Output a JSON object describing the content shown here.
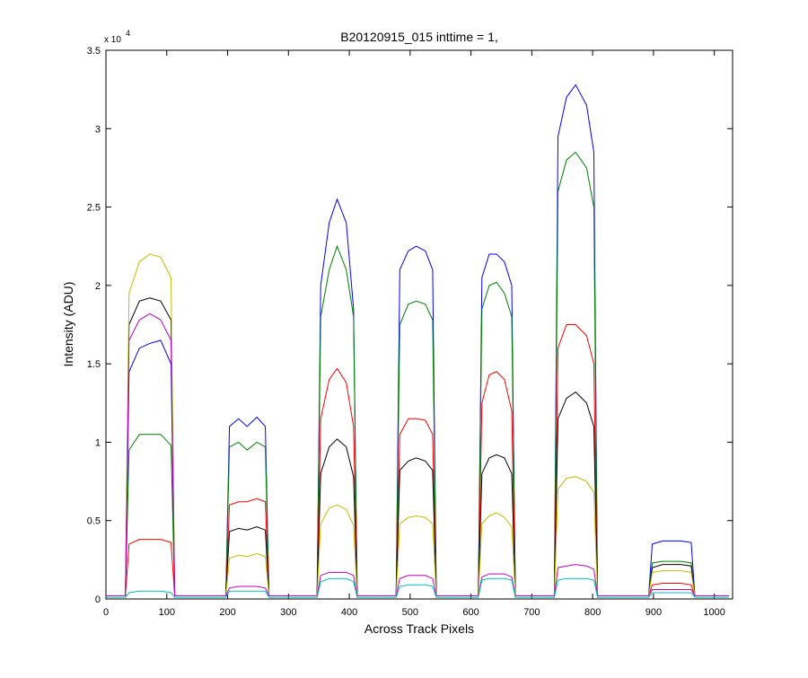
{
  "chart_data": {
    "type": "line",
    "title": "B20120915_015 inttime = 1,",
    "x_label": "Across Track Pixels",
    "y_label": "Intensity (ADU)",
    "y_multiplier": {
      "base": "x 10",
      "exponent": "4"
    },
    "x": [
      0,
      32,
      38,
      55,
      72,
      90,
      107,
      113,
      197,
      203,
      218,
      232,
      248,
      262,
      268,
      347,
      353,
      367,
      380,
      395,
      407,
      413,
      477,
      483,
      497,
      510,
      525,
      537,
      543,
      612,
      618,
      630,
      642,
      655,
      667,
      673,
      737,
      743,
      757,
      772,
      790,
      802,
      808,
      892,
      898,
      915,
      930,
      945,
      962,
      968,
      1024
    ],
    "series": [
      {
        "color": "#0000ff",
        "values": [
          0.02,
          0.02,
          1.45,
          1.6,
          1.63,
          1.65,
          1.5,
          0.02,
          0.02,
          1.1,
          1.15,
          1.1,
          1.16,
          1.1,
          0.02,
          0.02,
          2.0,
          2.4,
          2.55,
          2.4,
          1.85,
          0.02,
          0.02,
          2.1,
          2.22,
          2.25,
          2.22,
          2.1,
          0.02,
          0.02,
          2.05,
          2.2,
          2.2,
          2.15,
          2.0,
          0.02,
          0.02,
          2.95,
          3.2,
          3.28,
          3.15,
          2.85,
          0.02,
          0.02,
          0.35,
          0.37,
          0.37,
          0.37,
          0.36,
          0.02,
          0.02
        ]
      },
      {
        "color": "#008000",
        "values": [
          0.02,
          0.02,
          0.95,
          1.05,
          1.05,
          1.05,
          0.98,
          0.02,
          0.02,
          0.97,
          1.0,
          0.95,
          1.0,
          0.97,
          0.02,
          0.02,
          1.8,
          2.1,
          2.25,
          2.1,
          1.8,
          0.02,
          0.02,
          1.75,
          1.88,
          1.9,
          1.88,
          1.78,
          0.02,
          0.02,
          1.85,
          2.0,
          2.02,
          1.95,
          1.8,
          0.02,
          0.02,
          2.6,
          2.8,
          2.85,
          2.75,
          2.5,
          0.02,
          0.02,
          0.23,
          0.24,
          0.24,
          0.24,
          0.23,
          0.02,
          0.02
        ]
      },
      {
        "color": "#ff0000",
        "values": [
          0.02,
          0.02,
          0.35,
          0.38,
          0.38,
          0.38,
          0.36,
          0.02,
          0.02,
          0.6,
          0.62,
          0.62,
          0.64,
          0.62,
          0.02,
          0.02,
          1.15,
          1.4,
          1.47,
          1.38,
          1.1,
          0.02,
          0.02,
          1.05,
          1.15,
          1.15,
          1.14,
          1.05,
          0.02,
          0.02,
          1.25,
          1.43,
          1.45,
          1.4,
          1.2,
          0.02,
          0.02,
          1.6,
          1.75,
          1.75,
          1.68,
          1.5,
          0.02,
          0.02,
          0.09,
          0.1,
          0.1,
          0.1,
          0.09,
          0.02,
          0.02
        ]
      },
      {
        "color": "#000000",
        "values": [
          0.02,
          0.02,
          1.75,
          1.9,
          1.92,
          1.9,
          1.78,
          0.02,
          0.02,
          0.43,
          0.45,
          0.44,
          0.46,
          0.44,
          0.02,
          0.02,
          0.8,
          0.97,
          1.02,
          0.97,
          0.78,
          0.02,
          0.02,
          0.82,
          0.88,
          0.9,
          0.88,
          0.82,
          0.02,
          0.02,
          0.8,
          0.9,
          0.92,
          0.9,
          0.8,
          0.02,
          0.02,
          1.15,
          1.28,
          1.32,
          1.25,
          1.1,
          0.02,
          0.02,
          0.2,
          0.22,
          0.22,
          0.22,
          0.21,
          0.02,
          0.02
        ]
      },
      {
        "color": "#bfbf00",
        "values": [
          0.02,
          0.02,
          1.95,
          2.15,
          2.2,
          2.18,
          2.05,
          0.02,
          0.02,
          0.26,
          0.28,
          0.27,
          0.29,
          0.27,
          0.02,
          0.02,
          0.48,
          0.58,
          0.6,
          0.57,
          0.47,
          0.02,
          0.02,
          0.48,
          0.52,
          0.53,
          0.52,
          0.48,
          0.02,
          0.02,
          0.48,
          0.53,
          0.55,
          0.52,
          0.46,
          0.02,
          0.02,
          0.7,
          0.77,
          0.78,
          0.75,
          0.68,
          0.02,
          0.02,
          0.17,
          0.18,
          0.18,
          0.18,
          0.17,
          0.02,
          0.02
        ]
      },
      {
        "color": "#bf00bf",
        "values": [
          0.02,
          0.02,
          1.65,
          1.78,
          1.82,
          1.78,
          1.65,
          0.02,
          0.02,
          0.07,
          0.08,
          0.08,
          0.08,
          0.07,
          0.02,
          0.02,
          0.15,
          0.17,
          0.17,
          0.17,
          0.15,
          0.02,
          0.02,
          0.13,
          0.15,
          0.15,
          0.15,
          0.13,
          0.02,
          0.02,
          0.14,
          0.16,
          0.16,
          0.16,
          0.14,
          0.02,
          0.02,
          0.2,
          0.21,
          0.22,
          0.21,
          0.19,
          0.02,
          0.02,
          0.06,
          0.06,
          0.06,
          0.06,
          0.06,
          0.02,
          0.02
        ]
      },
      {
        "color": "#00bfbf",
        "values": [
          0.01,
          0.01,
          0.04,
          0.05,
          0.05,
          0.05,
          0.04,
          0.01,
          0.01,
          0.05,
          0.05,
          0.05,
          0.05,
          0.05,
          0.01,
          0.01,
          0.11,
          0.13,
          0.13,
          0.13,
          0.11,
          0.01,
          0.01,
          0.08,
          0.09,
          0.09,
          0.09,
          0.08,
          0.01,
          0.01,
          0.12,
          0.13,
          0.13,
          0.13,
          0.12,
          0.01,
          0.01,
          0.12,
          0.13,
          0.13,
          0.13,
          0.12,
          0.01,
          0.01,
          0.04,
          0.04,
          0.04,
          0.04,
          0.04,
          0.01,
          0.01
        ]
      }
    ],
    "xlim": [
      0,
      1030
    ],
    "ylim": [
      0,
      3.5
    ],
    "xticks": [
      0,
      100,
      200,
      300,
      400,
      500,
      600,
      700,
      800,
      900,
      1000
    ],
    "yticks": [
      0,
      0.5,
      1,
      1.5,
      2,
      2.5,
      3,
      3.5
    ],
    "grid": false
  }
}
